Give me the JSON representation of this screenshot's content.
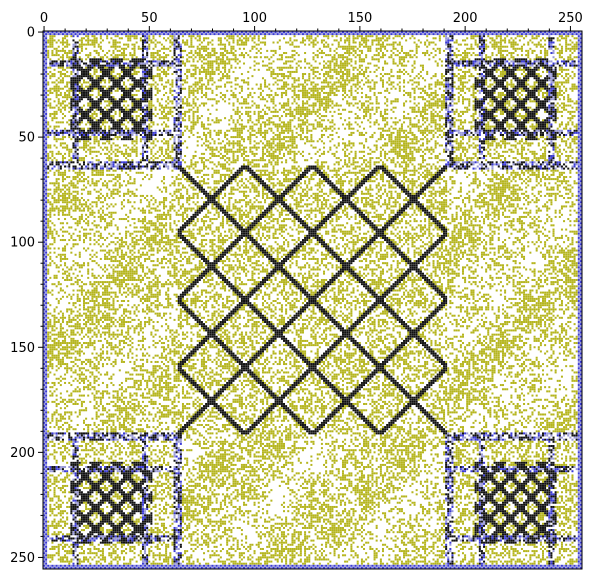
{
  "chart_data": {
    "type": "heatmap",
    "title": "",
    "xlabel": "",
    "ylabel": "",
    "xlim": [
      0,
      256
    ],
    "ylim": [
      256,
      0
    ],
    "x_axis_position": "top",
    "x_ticks": [
      0,
      50,
      100,
      150,
      200,
      250
    ],
    "y_ticks": [
      0,
      50,
      100,
      150,
      200,
      250
    ],
    "grid": false,
    "legend": "none",
    "matrix_size": 256,
    "blocks": [
      {
        "region": "outer-border",
        "x": [
          0,
          256
        ],
        "y": [
          0,
          256
        ],
        "pattern": "border-frame",
        "color_role": "blue"
      },
      {
        "region": "corner-top-left",
        "x": [
          0,
          64
        ],
        "y": [
          0,
          64
        ],
        "pattern": "diamond-lattice",
        "color_role": "black"
      },
      {
        "region": "corner-top-right",
        "x": [
          192,
          256
        ],
        "y": [
          0,
          64
        ],
        "pattern": "diamond-lattice",
        "color_role": "black"
      },
      {
        "region": "corner-bottom-left",
        "x": [
          0,
          64
        ],
        "y": [
          192,
          256
        ],
        "pattern": "diamond-lattice",
        "color_role": "black"
      },
      {
        "region": "corner-bottom-right",
        "x": [
          192,
          256
        ],
        "y": [
          192,
          256
        ],
        "pattern": "diamond-lattice",
        "color_role": "black"
      },
      {
        "region": "center",
        "x": [
          64,
          192
        ],
        "y": [
          64,
          192
        ],
        "pattern": "diamond-lattice",
        "color_role": "black"
      },
      {
        "region": "band-top",
        "x": [
          64,
          192
        ],
        "y": [
          0,
          64
        ],
        "pattern": "speckle",
        "color_role": "olive"
      },
      {
        "region": "band-bottom",
        "x": [
          64,
          192
        ],
        "y": [
          192,
          256
        ],
        "pattern": "speckle",
        "color_role": "olive"
      },
      {
        "region": "band-left",
        "x": [
          0,
          64
        ],
        "y": [
          64,
          192
        ],
        "pattern": "speckle",
        "color_role": "olive"
      },
      {
        "region": "band-right",
        "x": [
          192,
          256
        ],
        "y": [
          64,
          192
        ],
        "pattern": "speckle",
        "color_role": "olive"
      }
    ],
    "colors": {
      "olive": "#b5b51e",
      "black": "#111111",
      "blue": "#3a3ad6",
      "lavender": "#9a9ad8",
      "background": "#ffffff"
    }
  }
}
